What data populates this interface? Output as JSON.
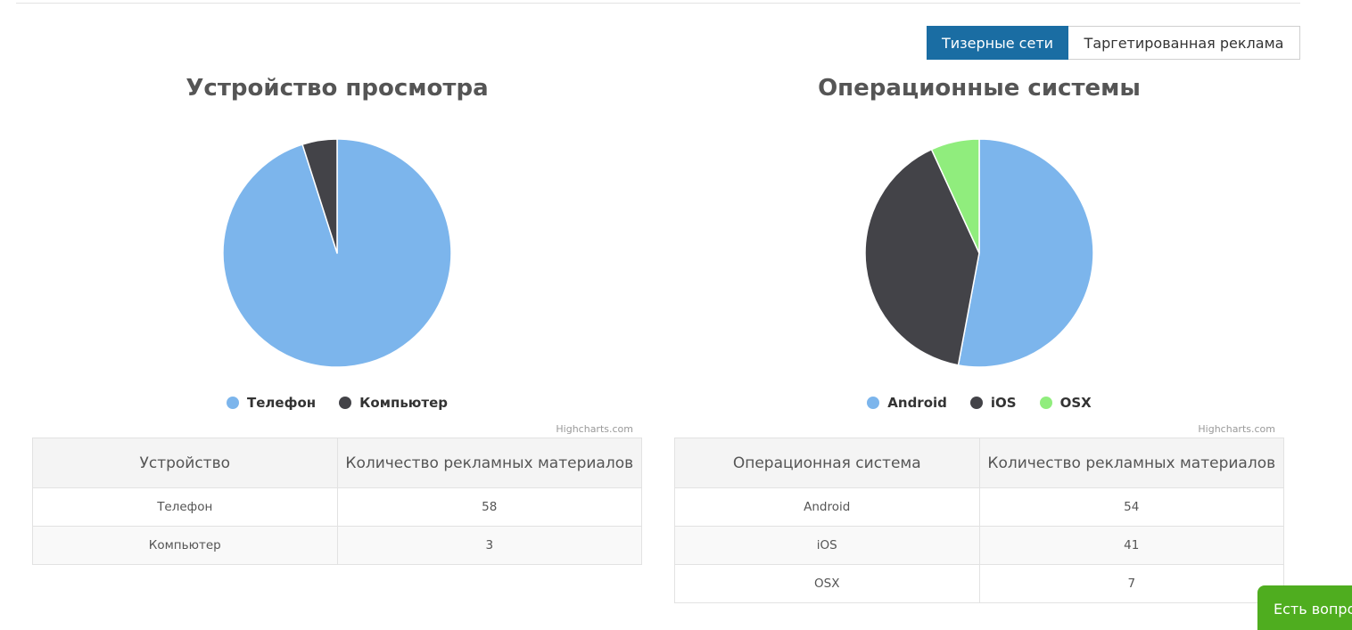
{
  "tabs": [
    {
      "label": "Тизерные сети",
      "active": true
    },
    {
      "label": "Таргетированная реклама",
      "active": false
    }
  ],
  "chart_data": [
    {
      "type": "pie",
      "title": "Устройство просмотра",
      "series": [
        {
          "name": "Телефон",
          "value": 58,
          "color": "#7cb5ec"
        },
        {
          "name": "Компьютер",
          "value": 3,
          "color": "#434348"
        }
      ],
      "legend": "bottom-center",
      "credits": "Highcharts.com"
    },
    {
      "type": "pie",
      "title": "Операционные системы",
      "series": [
        {
          "name": "Android",
          "value": 54,
          "color": "#7cb5ec"
        },
        {
          "name": "iOS",
          "value": 41,
          "color": "#434348"
        },
        {
          "name": "OSX",
          "value": 7,
          "color": "#90ed7d"
        }
      ],
      "legend": "bottom-center",
      "credits": "Highcharts.com"
    }
  ],
  "tables": [
    {
      "headers": [
        "Устройство",
        "Количество рекламных материалов"
      ],
      "rows": [
        [
          "Телефон",
          "58"
        ],
        [
          "Компьютер",
          "3"
        ]
      ]
    },
    {
      "headers": [
        "Операционная система",
        "Количество рекламных материалов"
      ],
      "rows": [
        [
          "Android",
          "54"
        ],
        [
          "iOS",
          "41"
        ],
        [
          "OSX",
          "7"
        ]
      ]
    }
  ],
  "chat_button": {
    "label": "Есть вопросы?"
  }
}
